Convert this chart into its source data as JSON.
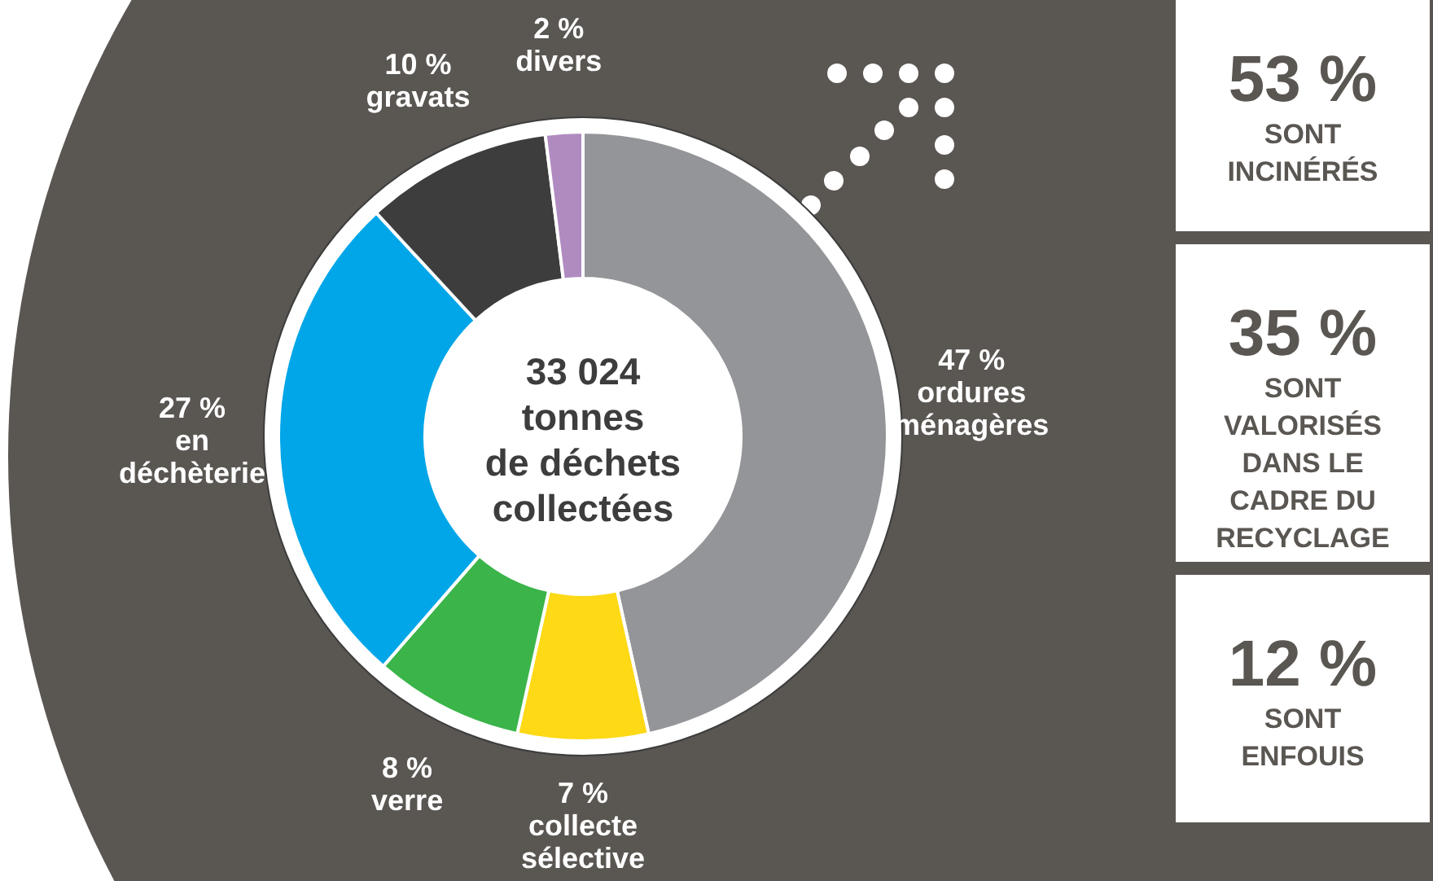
{
  "chart_data": [
    {
      "type": "donut",
      "title": "33 024\ntonnes\nde déchets\ncollectées",
      "categories": [
        "ordures ménagères",
        "collecte sélective",
        "verre",
        "en déchèterie",
        "gravats",
        "divers"
      ],
      "values": [
        47,
        7,
        8,
        27,
        10,
        2
      ],
      "value_labels": [
        "47 %",
        "7 %",
        "8 %",
        "27 %",
        "10 %",
        "2 %"
      ],
      "colors": [
        "#939598",
        "#fdd916",
        "#3bb44a",
        "#00a6e8",
        "#3d3d3d",
        "#b08bc0"
      ]
    },
    {
      "type": "other",
      "annotations": [
        "53 %",
        "SONT\nINCINÉRÉS",
        "35 %",
        "SONT\nVALORISÉS\nDANS LE\nCADRE DU\nRECYCLAGE",
        "12 %",
        "SONT\nENFOUIS"
      ]
    }
  ]
}
